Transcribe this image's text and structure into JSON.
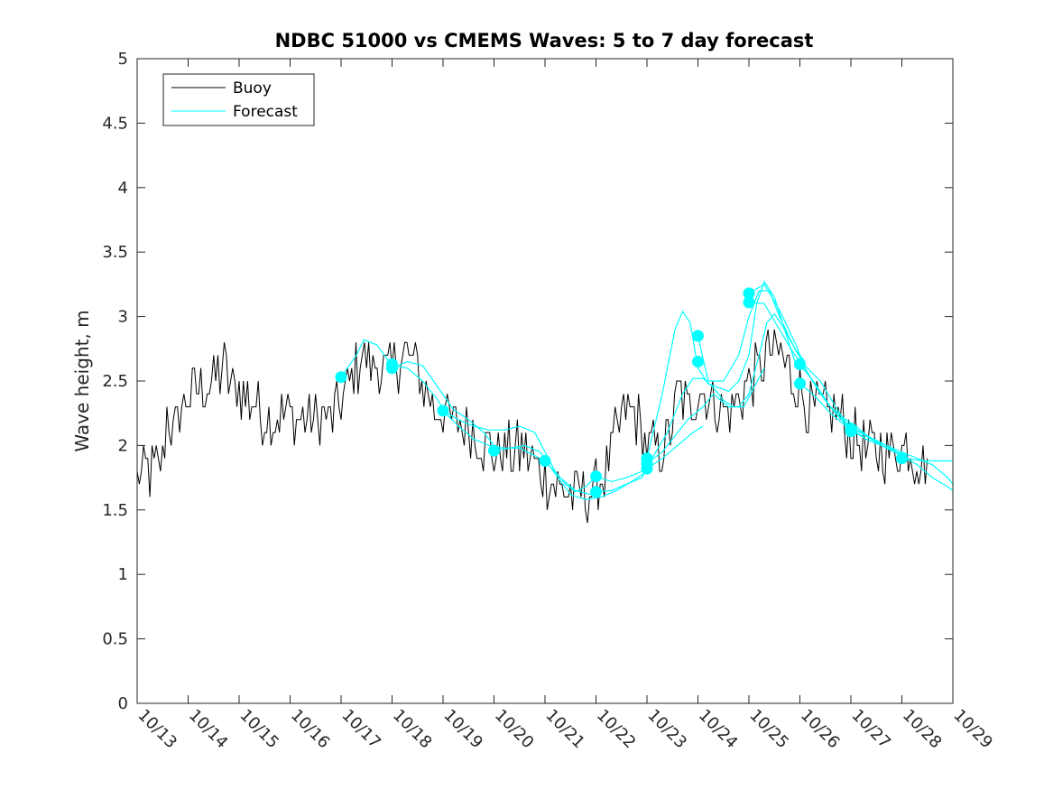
{
  "chart_data": {
    "type": "line",
    "title": "NDBC 51000 vs CMEMS Waves: 5 to 7 day forecast",
    "xlabel": "",
    "ylabel": "Wave height, m",
    "xlim": [
      0,
      16
    ],
    "ylim": [
      0,
      5
    ],
    "grid": false,
    "legend_position": "top-left",
    "x_tick_labels": [
      "10/13",
      "10/14",
      "10/15",
      "10/16",
      "10/17",
      "10/18",
      "10/19",
      "10/20",
      "10/21",
      "10/22",
      "10/23",
      "10/24",
      "10/25",
      "10/26",
      "10/27",
      "10/28",
      "10/29"
    ],
    "y_ticks": [
      0,
      0.5,
      1,
      1.5,
      2,
      2.5,
      3,
      3.5,
      4,
      4.5,
      5
    ],
    "y_tick_labels": [
      "0",
      "0.5",
      "1",
      "1.5",
      "2",
      "2.5",
      "3",
      "3.5",
      "4",
      "4.5",
      "5"
    ],
    "colors": {
      "buoy": "#000000",
      "forecast": "#00ffff"
    },
    "series": [
      {
        "name": "Buoy",
        "color": "#000000",
        "anchors": [
          [
            0.0,
            1.78
          ],
          [
            0.3,
            1.8
          ],
          [
            0.5,
            1.85
          ],
          [
            0.6,
            2.3
          ],
          [
            0.7,
            2.1
          ],
          [
            0.9,
            2.3
          ],
          [
            1.1,
            2.4
          ],
          [
            1.3,
            2.45
          ],
          [
            1.5,
            2.5
          ],
          [
            1.7,
            2.6
          ],
          [
            1.9,
            2.45
          ],
          [
            2.1,
            2.4
          ],
          [
            2.3,
            2.3
          ],
          [
            2.5,
            2.25
          ],
          [
            2.7,
            2.2
          ],
          [
            2.9,
            2.25
          ],
          [
            3.1,
            2.2
          ],
          [
            3.3,
            2.2
          ],
          [
            3.5,
            2.2
          ],
          [
            3.7,
            2.2
          ],
          [
            3.9,
            2.25
          ],
          [
            4.1,
            2.4
          ],
          [
            4.3,
            2.6
          ],
          [
            4.4,
            2.7
          ],
          [
            4.6,
            2.6
          ],
          [
            4.8,
            2.6
          ],
          [
            5.0,
            2.6
          ],
          [
            5.2,
            2.7
          ],
          [
            5.4,
            2.65
          ],
          [
            5.6,
            2.5
          ],
          [
            5.8,
            2.3
          ],
          [
            6.0,
            2.25
          ],
          [
            6.2,
            2.2
          ],
          [
            6.4,
            2.15
          ],
          [
            6.6,
            2.1
          ],
          [
            6.8,
            2.0
          ],
          [
            7.0,
            1.95
          ],
          [
            7.2,
            1.95
          ],
          [
            7.4,
            1.95
          ],
          [
            7.6,
            1.95
          ],
          [
            7.8,
            1.85
          ],
          [
            8.0,
            1.75
          ],
          [
            8.2,
            1.68
          ],
          [
            8.4,
            1.62
          ],
          [
            8.6,
            1.6
          ],
          [
            8.8,
            1.6
          ],
          [
            9.0,
            1.65
          ],
          [
            9.2,
            1.8
          ],
          [
            9.4,
            2.1
          ],
          [
            9.6,
            2.3
          ],
          [
            9.8,
            2.2
          ],
          [
            10.0,
            2.0
          ],
          [
            10.2,
            1.95
          ],
          [
            10.4,
            2.0
          ],
          [
            10.6,
            2.4
          ],
          [
            10.8,
            2.3
          ],
          [
            11.0,
            2.45
          ],
          [
            11.2,
            2.35
          ],
          [
            11.4,
            2.3
          ],
          [
            11.6,
            2.25
          ],
          [
            11.8,
            2.35
          ],
          [
            12.0,
            2.5
          ],
          [
            12.2,
            2.6
          ],
          [
            12.4,
            2.75
          ],
          [
            12.6,
            2.7
          ],
          [
            12.8,
            2.55
          ],
          [
            13.0,
            2.4
          ],
          [
            13.2,
            2.3
          ],
          [
            13.4,
            2.3
          ],
          [
            13.6,
            2.25
          ],
          [
            13.8,
            2.2
          ],
          [
            14.0,
            2.1
          ],
          [
            14.2,
            2.0
          ],
          [
            14.4,
            1.95
          ],
          [
            14.6,
            1.95
          ],
          [
            14.8,
            1.95
          ],
          [
            15.0,
            2.0
          ],
          [
            15.2,
            1.95
          ],
          [
            15.4,
            1.85
          ],
          [
            15.5,
            1.9
          ]
        ]
      },
      {
        "name": "Forecast",
        "color": "#00ffff",
        "runs": [
          [
            [
              4.0,
              2.53
            ],
            [
              4.3,
              2.7
            ],
            [
              4.45,
              2.82
            ],
            [
              4.7,
              2.78
            ],
            [
              5.0,
              2.62
            ],
            [
              5.3,
              2.6
            ],
            [
              5.6,
              2.5
            ],
            [
              5.9,
              2.35
            ],
            [
              6.0,
              2.28
            ]
          ],
          [
            [
              5.0,
              2.6
            ],
            [
              5.3,
              2.65
            ],
            [
              5.6,
              2.62
            ],
            [
              5.9,
              2.45
            ],
            [
              6.2,
              2.28
            ],
            [
              6.5,
              2.2
            ],
            [
              6.8,
              2.1
            ],
            [
              7.0,
              2.0
            ]
          ],
          [
            [
              6.0,
              2.27
            ],
            [
              6.3,
              2.2
            ],
            [
              6.6,
              2.15
            ],
            [
              6.9,
              2.12
            ],
            [
              7.2,
              2.12
            ],
            [
              7.5,
              2.15
            ],
            [
              7.8,
              2.1
            ],
            [
              8.0,
              1.95
            ],
            [
              8.2,
              1.8
            ],
            [
              8.4,
              1.7
            ],
            [
              8.6,
              1.64
            ],
            [
              8.8,
              1.68
            ],
            [
              9.0,
              1.76
            ]
          ],
          [
            [
              6.0,
              2.27
            ],
            [
              6.3,
              2.15
            ],
            [
              6.6,
              2.05
            ],
            [
              6.9,
              2.0
            ],
            [
              7.2,
              1.98
            ],
            [
              7.5,
              1.98
            ],
            [
              7.8,
              1.92
            ],
            [
              8.0,
              1.88
            ]
          ],
          [
            [
              7.0,
              1.96
            ],
            [
              7.3,
              1.98
            ],
            [
              7.6,
              2.0
            ],
            [
              7.9,
              1.95
            ],
            [
              8.2,
              1.78
            ],
            [
              8.5,
              1.62
            ],
            [
              8.8,
              1.58
            ],
            [
              9.1,
              1.6
            ],
            [
              9.4,
              1.65
            ],
            [
              9.7,
              1.72
            ],
            [
              10.0,
              1.8
            ]
          ],
          [
            [
              8.0,
              1.88
            ],
            [
              8.3,
              1.75
            ],
            [
              8.6,
              1.65
            ],
            [
              8.9,
              1.62
            ],
            [
              9.1,
              1.66
            ]
          ],
          [
            [
              9.0,
              1.64
            ],
            [
              9.3,
              1.65
            ],
            [
              9.6,
              1.7
            ],
            [
              9.9,
              1.75
            ],
            [
              10.1,
              1.9
            ],
            [
              10.4,
              2.1
            ],
            [
              10.7,
              2.4
            ],
            [
              10.9,
              2.52
            ],
            [
              11.1,
              2.52
            ],
            [
              11.3,
              2.45
            ],
            [
              11.5,
              2.35
            ],
            [
              11.7,
              2.3
            ],
            [
              11.9,
              2.3
            ],
            [
              12.1,
              2.45
            ],
            [
              12.3,
              2.6
            ]
          ],
          [
            [
              9.0,
              1.76
            ],
            [
              9.3,
              1.72
            ],
            [
              9.6,
              1.75
            ],
            [
              9.9,
              1.8
            ],
            [
              10.0,
              1.9
            ],
            [
              10.3,
              2.4
            ],
            [
              10.55,
              2.9
            ],
            [
              10.7,
              3.04
            ],
            [
              10.85,
              2.95
            ],
            [
              11.0,
              2.6
            ],
            [
              11.2,
              2.48
            ],
            [
              11.4,
              2.45
            ],
            [
              11.6,
              2.42
            ],
            [
              11.8,
              2.5
            ],
            [
              12.0,
              2.7
            ],
            [
              12.15,
              3.1
            ],
            [
              12.3,
              3.27
            ],
            [
              12.5,
              3.15
            ],
            [
              12.7,
              2.9
            ],
            [
              12.9,
              2.65
            ],
            [
              13.1,
              2.58
            ]
          ],
          [
            [
              10.0,
              1.86
            ],
            [
              10.3,
              1.95
            ],
            [
              10.6,
              2.1
            ],
            [
              10.8,
              2.2
            ],
            [
              11.1,
              2.3
            ],
            [
              11.3,
              2.4
            ],
            [
              11.6,
              2.3
            ],
            [
              11.8,
              2.3
            ],
            [
              12.0,
              2.4
            ],
            [
              12.2,
              2.7
            ],
            [
              12.35,
              2.95
            ],
            [
              12.5,
              3.02
            ],
            [
              12.7,
              2.9
            ],
            [
              12.9,
              2.75
            ],
            [
              13.1,
              2.65
            ]
          ],
          [
            [
              10.0,
              1.82
            ],
            [
              10.3,
              1.9
            ],
            [
              10.6,
              2.0
            ],
            [
              10.9,
              2.1
            ],
            [
              11.1,
              2.15
            ]
          ],
          [
            [
              11.0,
              2.85
            ],
            [
              11.2,
              2.5
            ],
            [
              11.5,
              2.5
            ],
            [
              11.8,
              2.7
            ],
            [
              12.0,
              3.0
            ],
            [
              12.2,
              3.2
            ],
            [
              12.4,
              3.2
            ],
            [
              12.6,
              3.0
            ],
            [
              12.9,
              2.75
            ],
            [
              13.1,
              2.62
            ],
            [
              13.4,
              2.5
            ],
            [
              13.7,
              2.3
            ],
            [
              14.0,
              2.12
            ],
            [
              14.3,
              2.05
            ],
            [
              14.6,
              2.0
            ],
            [
              14.9,
              1.95
            ],
            [
              15.1,
              1.9
            ]
          ],
          [
            [
              12.0,
              3.18
            ],
            [
              12.3,
              3.25
            ],
            [
              12.6,
              3.05
            ],
            [
              12.9,
              2.8
            ],
            [
              13.1,
              2.6
            ],
            [
              13.4,
              2.4
            ],
            [
              13.7,
              2.25
            ],
            [
              14.0,
              2.15
            ],
            [
              14.3,
              2.08
            ],
            [
              14.6,
              2.02
            ],
            [
              14.9,
              1.95
            ],
            [
              15.1,
              1.9
            ]
          ],
          [
            [
              12.0,
              3.11
            ],
            [
              12.3,
              3.1
            ],
            [
              12.6,
              2.9
            ],
            [
              12.9,
              2.7
            ],
            [
              13.1,
              2.6
            ],
            [
              13.4,
              2.4
            ],
            [
              13.7,
              2.25
            ],
            [
              14.0,
              2.12
            ],
            [
              14.3,
              2.05
            ],
            [
              14.6,
              2.0
            ],
            [
              14.9,
              1.95
            ],
            [
              15.1,
              1.92
            ]
          ],
          [
            [
              13.0,
              2.63
            ],
            [
              13.3,
              2.48
            ],
            [
              13.6,
              2.3
            ],
            [
              13.9,
              2.2
            ],
            [
              14.1,
              2.15
            ],
            [
              14.4,
              2.05
            ],
            [
              14.7,
              2.0
            ],
            [
              15.0,
              1.95
            ],
            [
              15.3,
              1.9
            ],
            [
              15.6,
              1.85
            ],
            [
              15.9,
              1.75
            ],
            [
              16.0,
              1.7
            ]
          ],
          [
            [
              13.0,
              2.48
            ],
            [
              13.3,
              2.38
            ],
            [
              13.6,
              2.25
            ],
            [
              13.9,
              2.15
            ],
            [
              14.1,
              2.12
            ],
            [
              14.4,
              2.05
            ],
            [
              14.7,
              1.98
            ],
            [
              15.0,
              1.92
            ],
            [
              15.3,
              1.85
            ],
            [
              15.6,
              1.75
            ],
            [
              15.9,
              1.68
            ],
            [
              16.0,
              1.65
            ]
          ],
          [
            [
              14.0,
              2.13
            ],
            [
              14.3,
              2.05
            ],
            [
              14.6,
              2.0
            ],
            [
              14.9,
              1.95
            ],
            [
              15.1,
              1.9
            ],
            [
              15.4,
              1.88
            ],
            [
              15.7,
              1.88
            ],
            [
              16.0,
              1.88
            ]
          ]
        ],
        "markers": [
          [
            4.0,
            2.53
          ],
          [
            5.0,
            2.6
          ],
          [
            5.0,
            2.63
          ],
          [
            6.0,
            2.27
          ],
          [
            7.0,
            1.96
          ],
          [
            8.0,
            1.88
          ],
          [
            9.0,
            1.76
          ],
          [
            9.0,
            1.64
          ],
          [
            10.0,
            1.9
          ],
          [
            10.0,
            1.86
          ],
          [
            10.0,
            1.82
          ],
          [
            11.0,
            2.85
          ],
          [
            11.0,
            2.65
          ],
          [
            12.0,
            3.18
          ],
          [
            12.0,
            3.11
          ],
          [
            13.0,
            2.63
          ],
          [
            13.0,
            2.48
          ],
          [
            14.0,
            2.13
          ],
          [
            14.0,
            2.11
          ],
          [
            15.0,
            1.9
          ]
        ]
      }
    ]
  }
}
